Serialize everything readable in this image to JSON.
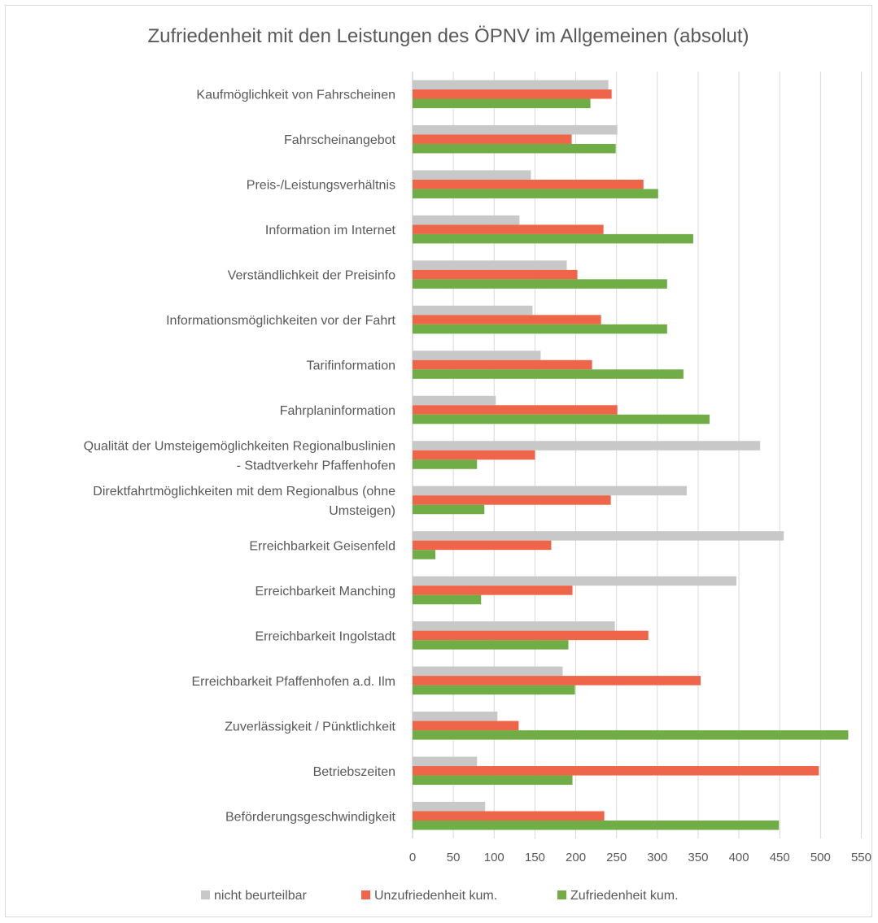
{
  "chart_data": {
    "type": "bar",
    "orientation": "horizontal",
    "title": "Zufriedenheit mit den Leistungen des ÖPNV im Allgemeinen (absolut)",
    "categories": [
      "Kaufmöglichkeit von Fahrscheinen",
      "Fahrscheinangebot",
      "Preis-/Leistungsverhältnis",
      "Information im Internet",
      "Verständlichkeit der Preisinfo",
      "Informationsmöglichkeiten vor der Fahrt",
      "Tarifinformation",
      "Fahrplaninformation",
      "Qualität der Umsteigemöglichkeiten Regionalbuslinien - Stadtverkehr Pfaffenhofen",
      "Direktfahrtmöglichkeiten mit dem Regionalbus (ohne Umsteigen)",
      "Erreichbarkeit Geisenfeld",
      "Erreichbarkeit Manching",
      "Erreichbarkeit Ingolstadt",
      "Erreichbarkeit Pfaffenhofen a.d. Ilm",
      "Zuverlässigkeit / Pünktlichkeit",
      "Betriebszeiten",
      "Beförderungsgeschwindigkeit"
    ],
    "category_lines": [
      [
        "Kaufmöglichkeit von Fahrscheinen"
      ],
      [
        "Fahrscheinangebot"
      ],
      [
        "Preis-/Leistungsverhältnis"
      ],
      [
        "Information im Internet"
      ],
      [
        "Verständlichkeit der Preisinfo"
      ],
      [
        "Informationsmöglichkeiten vor der Fahrt"
      ],
      [
        "Tarifinformation"
      ],
      [
        "Fahrplaninformation"
      ],
      [
        "Qualität der Umsteigemöglichkeiten Regionalbuslinien",
        "- Stadtverkehr Pfaffenhofen"
      ],
      [
        "Direktfahrtmöglichkeiten mit dem Regionalbus (ohne",
        "Umsteigen)"
      ],
      [
        "Erreichbarkeit Geisenfeld"
      ],
      [
        "Erreichbarkeit Manching"
      ],
      [
        "Erreichbarkeit Ingolstadt"
      ],
      [
        "Erreichbarkeit Pfaffenhofen a.d. Ilm"
      ],
      [
        "Zuverlässigkeit / Pünktlichkeit"
      ],
      [
        "Betriebszeiten"
      ],
      [
        "Beförderungsgeschwindigkeit"
      ]
    ],
    "series": [
      {
        "name": "nicht beurteilbar",
        "color": "#c8c8c8",
        "values": [
          240,
          251,
          145,
          131,
          189,
          147,
          157,
          102,
          426,
          336,
          455,
          397,
          248,
          184,
          104,
          79,
          89
        ]
      },
      {
        "name": "Unzufriedenheit kum.",
        "color": "#ef6549",
        "values": [
          244,
          195,
          283,
          234,
          202,
          231,
          220,
          251,
          150,
          243,
          170,
          196,
          289,
          353,
          130,
          498,
          235
        ]
      },
      {
        "name": "Zufriedenheit kum.",
        "color": "#70ad47",
        "values": [
          218,
          249,
          301,
          344,
          312,
          312,
          332,
          364,
          79,
          88,
          28,
          84,
          191,
          199,
          534,
          196,
          449
        ]
      }
    ],
    "xlim": [
      0,
      550
    ],
    "xticks": [
      0,
      50,
      100,
      150,
      200,
      250,
      300,
      350,
      400,
      450,
      500,
      550
    ],
    "xlabel": "",
    "ylabel": "",
    "grid": "vertical",
    "legend_position": "bottom"
  }
}
